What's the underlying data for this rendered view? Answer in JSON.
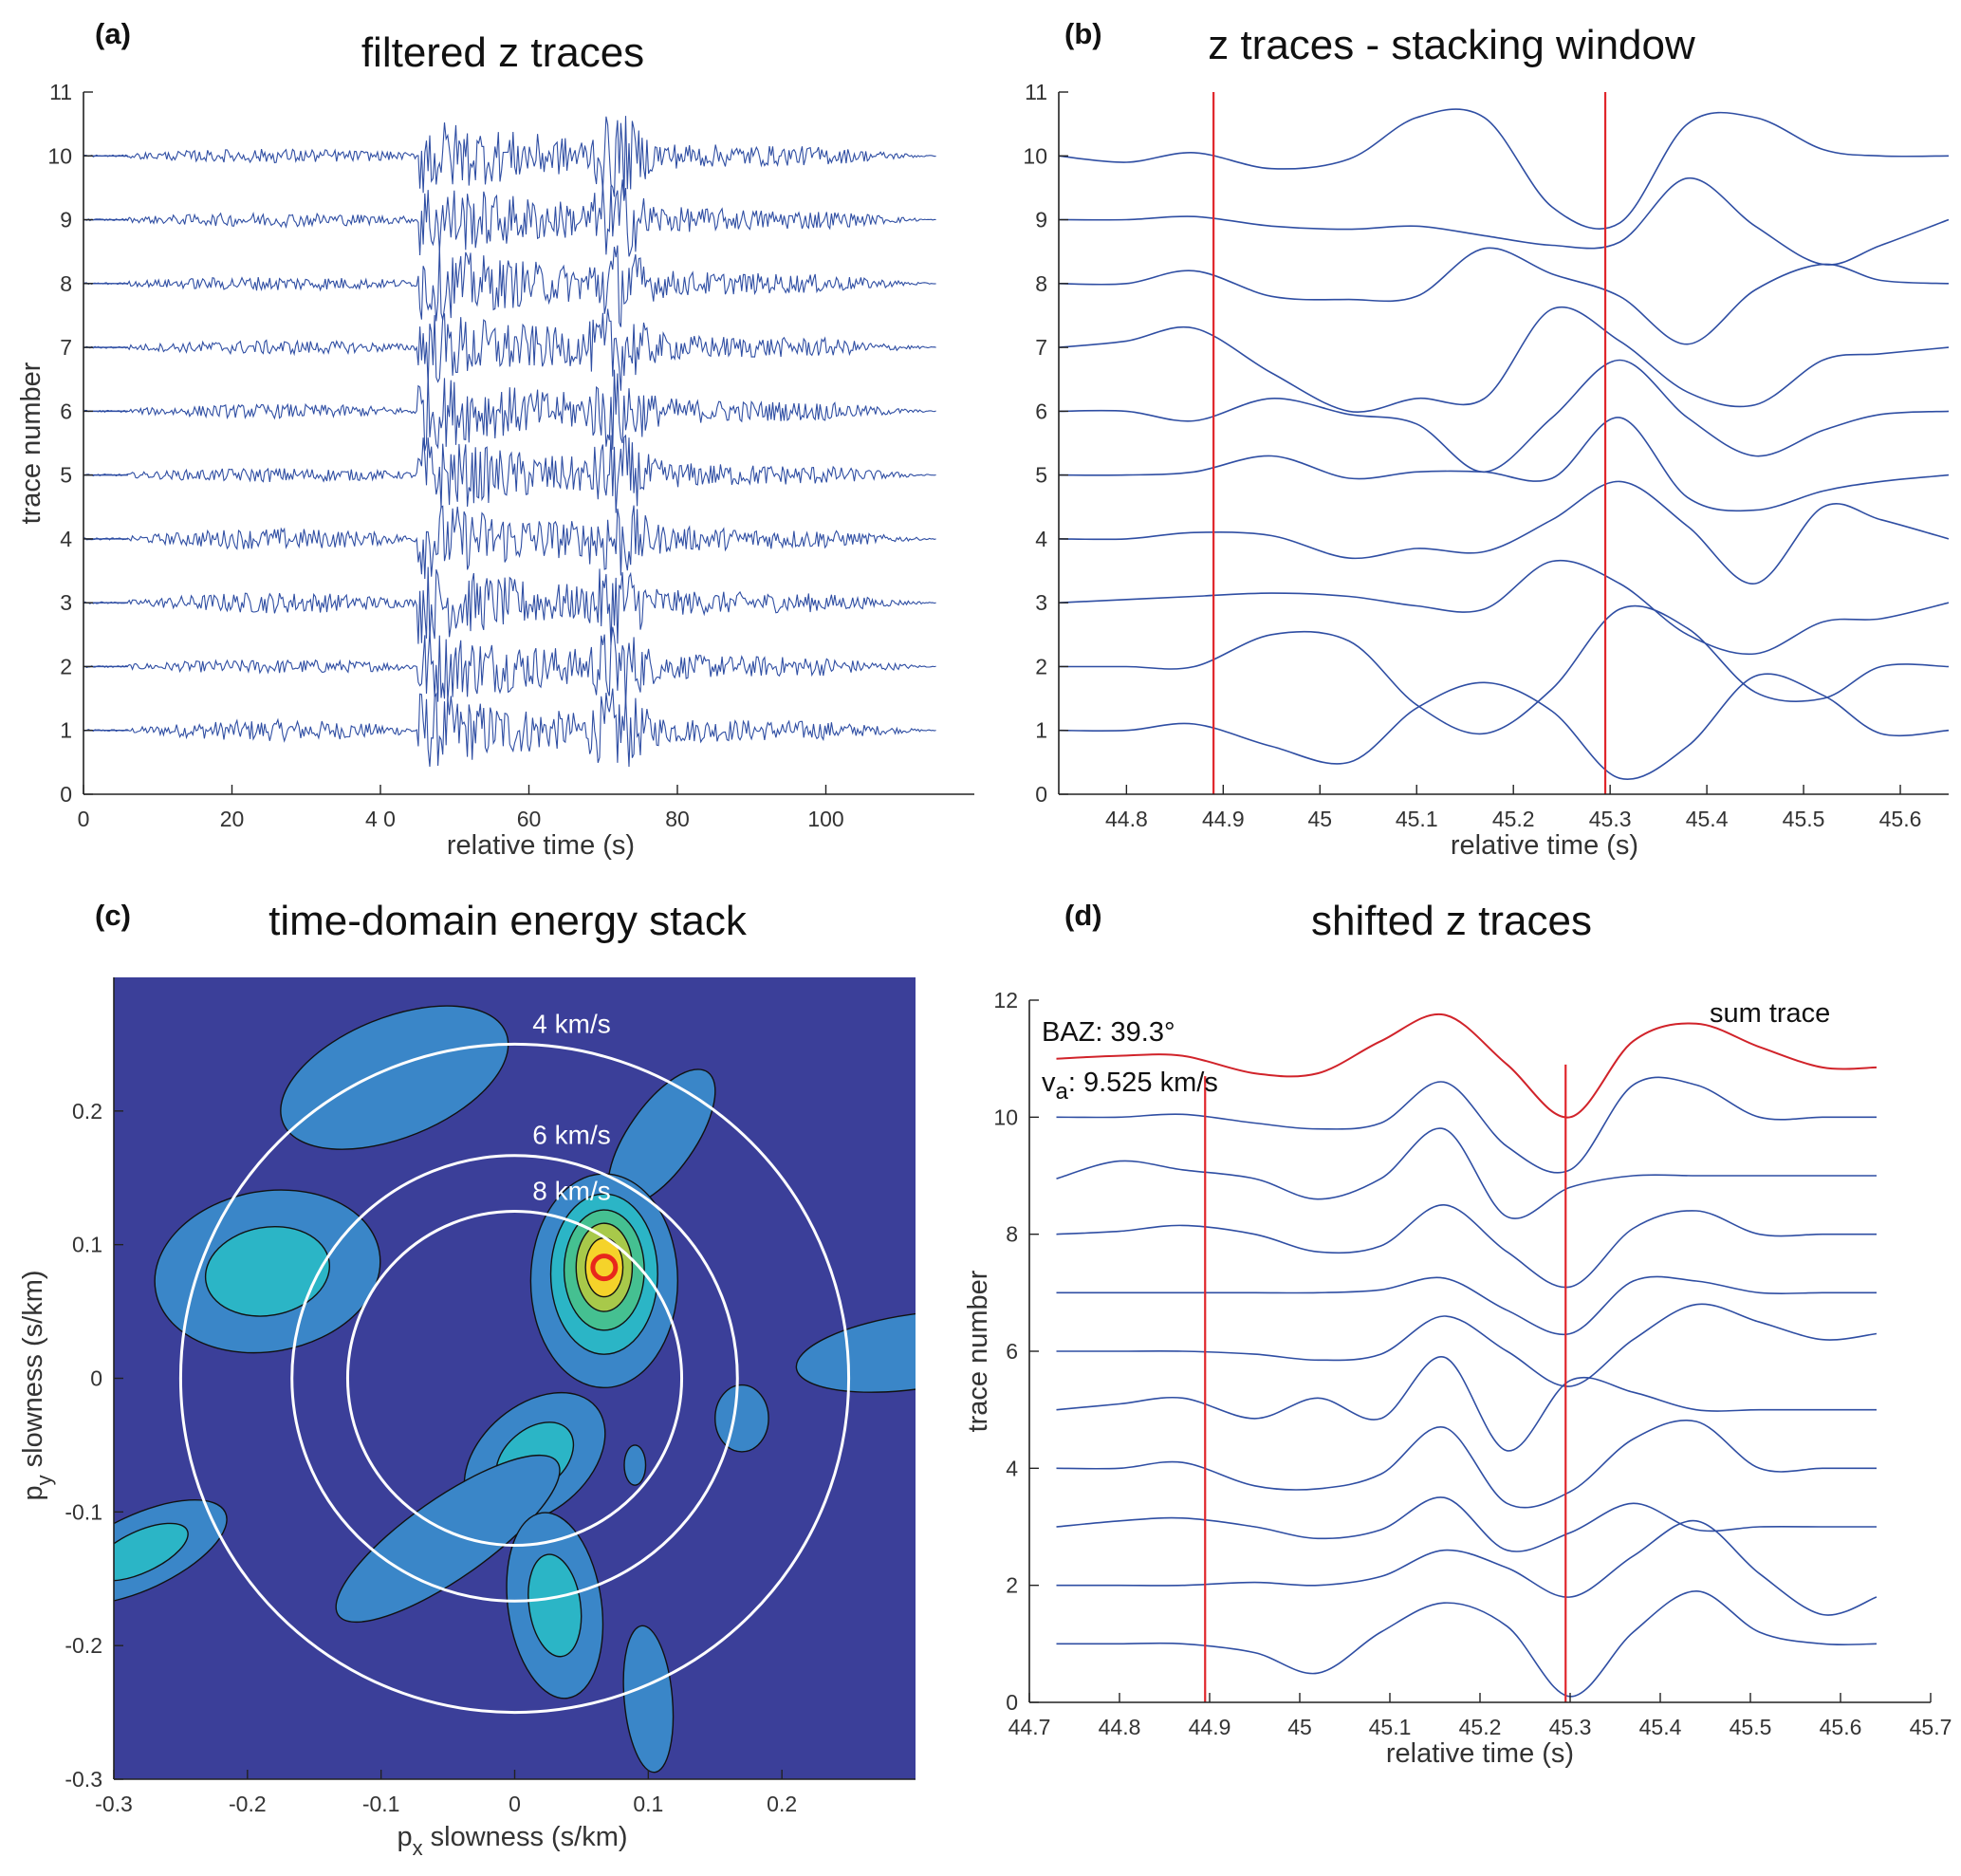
{
  "chart_data": [
    {
      "panel": "(a)",
      "type": "line",
      "title": "filtered z traces",
      "xlabel": "relative time (s)",
      "ylabel": "trace number",
      "xlim": [
        0,
        120
      ],
      "ylim": [
        0,
        11
      ],
      "x_ticks": [
        0,
        20,
        40,
        60,
        80,
        100
      ],
      "x_tick_labels": [
        "0",
        "20",
        "4 0",
        "60",
        "80",
        "100"
      ],
      "y_ticks": [
        0,
        1,
        2,
        3,
        4,
        5,
        6,
        7,
        8,
        9,
        10,
        11
      ],
      "trace_color": "#2f4ea3",
      "trace_count": 10,
      "first_arrival_s": 45,
      "second_arrival_s": 72,
      "record_end_s": 115
    },
    {
      "panel": "(b)",
      "type": "line",
      "title": "z traces - stacking window",
      "xlabel": "relative time (s)",
      "ylabel": "",
      "xlim": [
        44.73,
        45.65
      ],
      "ylim": [
        0,
        11
      ],
      "x_ticks": [
        44.8,
        44.9,
        45,
        45.1,
        45.2,
        45.3,
        45.4,
        45.5,
        45.6
      ],
      "x_tick_labels": [
        "44.8",
        "44.9",
        "45",
        "45.1",
        "45.2",
        "45.3",
        "45.4",
        "45.5",
        "45.6"
      ],
      "y_ticks": [
        0,
        1,
        2,
        3,
        4,
        5,
        6,
        7,
        8,
        9,
        10,
        11
      ],
      "window_lines_s": [
        44.89,
        45.295
      ],
      "window_color": "#e0262b",
      "trace_color": "#2f4ea3",
      "x": [
        44.73,
        44.8,
        44.87,
        44.95,
        45.03,
        45.1,
        45.17,
        45.24,
        45.31,
        45.38,
        45.45,
        45.52,
        45.58,
        45.65
      ],
      "series": [
        {
          "values": [
            1,
            1,
            1.1,
            0.75,
            0.5,
            1.35,
            1.75,
            1.3,
            0.25,
            0.75,
            1.85,
            1.55,
            0.95,
            1
          ]
        },
        {
          "values": [
            2,
            2,
            2,
            2.5,
            2.4,
            1.4,
            0.95,
            1.65,
            2.9,
            2.6,
            1.6,
            1.5,
            2,
            2
          ]
        },
        {
          "values": [
            3,
            3.05,
            3.1,
            3.15,
            3.1,
            2.95,
            2.9,
            3.65,
            3.3,
            2.5,
            2.2,
            2.7,
            2.75,
            3
          ]
        },
        {
          "values": [
            4,
            4,
            4.1,
            4.05,
            3.7,
            3.85,
            3.8,
            4.3,
            4.9,
            4.2,
            3.3,
            4.5,
            4.3,
            4
          ]
        },
        {
          "values": [
            5,
            5,
            5.05,
            5.3,
            4.95,
            5.05,
            5.05,
            4.95,
            5.9,
            4.65,
            4.45,
            4.75,
            4.9,
            5
          ]
        },
        {
          "values": [
            6,
            6,
            5.85,
            6.2,
            5.95,
            5.8,
            5.05,
            5.9,
            6.8,
            5.9,
            5.3,
            5.7,
            5.95,
            6
          ]
        },
        {
          "values": [
            7,
            7.1,
            7.3,
            6.6,
            6.0,
            6.2,
            6.2,
            7.6,
            7.1,
            6.3,
            6.1,
            6.8,
            6.9,
            7
          ]
        },
        {
          "values": [
            8,
            8,
            8.2,
            7.8,
            7.75,
            7.8,
            8.55,
            8.15,
            7.8,
            7.05,
            7.9,
            8.3,
            8.05,
            8
          ]
        },
        {
          "values": [
            9,
            9,
            9.05,
            8.9,
            8.85,
            8.9,
            8.75,
            8.6,
            8.65,
            9.65,
            8.9,
            8.3,
            8.6,
            9
          ]
        },
        {
          "values": [
            10,
            9.9,
            10.05,
            9.8,
            9.95,
            10.6,
            10.6,
            9.2,
            8.95,
            10.5,
            10.6,
            10.1,
            10,
            10
          ]
        }
      ]
    },
    {
      "panel": "(c)",
      "type": "heatmap",
      "title": "time-domain energy stack",
      "xlabel": "p",
      "xlabel_sub": "x",
      "xlabel_rest": " slowness (s/km)",
      "ylabel": "p",
      "ylabel_sub": "y",
      "ylabel_rest": " slowness (s/km)",
      "xlim": [
        -0.3,
        0.3
      ],
      "ylim": [
        -0.3,
        0.3
      ],
      "x_ticks": [
        -0.3,
        -0.2,
        -0.1,
        0,
        0.1,
        0.2
      ],
      "y_ticks": [
        0.2,
        0.1,
        0,
        -0.1,
        -0.2,
        -0.3
      ],
      "background_color": "#3b3f99",
      "colormap": [
        "#3b3f99",
        "#3a86c8",
        "#2bb5c6",
        "#45c091",
        "#a8c94a",
        "#f5d32a",
        "#e8271c"
      ],
      "rings": [
        {
          "label": "4 km/s",
          "radius_s_per_km": 0.25
        },
        {
          "label": "6 km/s",
          "radius_s_per_km": 0.1667
        },
        {
          "label": "8 km/s",
          "radius_s_per_km": 0.125
        }
      ],
      "ring_color": "#ffffff",
      "peak": {
        "px": 0.067,
        "py": 0.083
      }
    },
    {
      "panel": "(d)",
      "type": "line",
      "title": "shifted z traces",
      "xlabel": "relative time (s)",
      "ylabel": "trace number",
      "xlim": [
        44.7,
        45.7
      ],
      "ylim": [
        0,
        12
      ],
      "x_ticks": [
        44.7,
        44.8,
        44.9,
        45,
        45.1,
        45.2,
        45.3,
        45.4,
        45.5,
        45.6,
        45.7
      ],
      "x_tick_labels": [
        "44.7",
        "44.8",
        "44.9",
        "45",
        "45.1",
        "45.2",
        "45.3",
        "45.4",
        "45.5",
        "45.6",
        "45.7"
      ],
      "y_ticks": [
        0,
        2,
        4,
        6,
        8,
        10,
        12
      ],
      "window_lines_s": [
        44.895,
        45.295
      ],
      "window_color": "#e0262b",
      "trace_color": "#2f4ea3",
      "annotations": {
        "baz": "BAZ: 39.3°",
        "va_symbol": "v",
        "va_sub": "a",
        "va_value": ": 9.525 km/s",
        "sum_label": "sum trace"
      },
      "x": [
        44.73,
        44.8,
        44.87,
        44.95,
        45.02,
        45.09,
        45.16,
        45.23,
        45.3,
        45.37,
        45.44,
        45.51,
        45.58,
        45.64
      ],
      "series": [
        {
          "values": [
            1,
            1,
            1.0,
            0.85,
            0.5,
            1.2,
            1.7,
            1.3,
            0.1,
            1.2,
            1.9,
            1.2,
            1.0,
            1
          ]
        },
        {
          "values": [
            2,
            2,
            2,
            2.05,
            2.0,
            2.15,
            2.6,
            2.3,
            1.8,
            2.5,
            3.1,
            2.2,
            1.5,
            1.8
          ]
        },
        {
          "values": [
            3,
            3.1,
            3.15,
            3.0,
            2.8,
            2.95,
            3.5,
            2.6,
            2.9,
            3.4,
            2.95,
            3.0,
            3.0,
            3
          ]
        },
        {
          "values": [
            4,
            4,
            4.1,
            3.7,
            3.65,
            3.9,
            4.7,
            3.4,
            3.6,
            4.5,
            4.8,
            4.0,
            4,
            4
          ]
        },
        {
          "values": [
            5,
            5.1,
            5.2,
            4.85,
            5.2,
            4.85,
            5.9,
            4.3,
            5.5,
            5.3,
            5.0,
            5.0,
            5,
            5
          ]
        },
        {
          "values": [
            6,
            6,
            6,
            5.95,
            5.85,
            5.95,
            6.6,
            6.0,
            5.4,
            6.2,
            6.8,
            6.5,
            6.2,
            6.3
          ]
        },
        {
          "values": [
            7,
            7,
            7,
            7,
            7,
            7.05,
            7.25,
            6.7,
            6.3,
            7.2,
            7.2,
            7,
            7,
            7
          ]
        },
        {
          "values": [
            8,
            8.05,
            8.15,
            8.0,
            7.7,
            7.8,
            8.5,
            7.7,
            7.1,
            8.1,
            8.4,
            8.0,
            8,
            8
          ]
        },
        {
          "values": [
            8.95,
            9.25,
            9.1,
            8.95,
            8.6,
            8.95,
            9.8,
            8.3,
            8.8,
            9.0,
            9.0,
            9.0,
            9.0,
            9.0
          ]
        },
        {
          "values": [
            10,
            10,
            10.05,
            9.9,
            9.8,
            9.9,
            10.6,
            9.5,
            9.1,
            10.55,
            10.55,
            10.0,
            10,
            10
          ]
        }
      ],
      "sum_trace": {
        "color": "#d1232a",
        "values": [
          11,
          11.05,
          11.05,
          10.75,
          10.75,
          11.3,
          11.75,
          10.9,
          10.0,
          11.3,
          11.6,
          11.2,
          10.85,
          10.85
        ]
      }
    }
  ]
}
